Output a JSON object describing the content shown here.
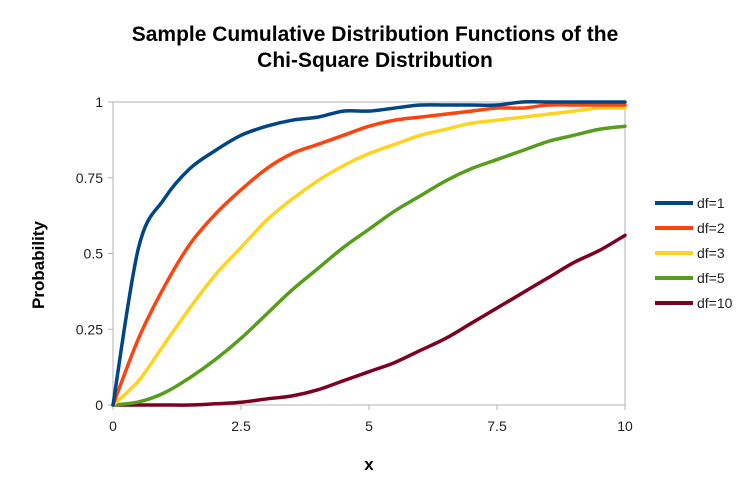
{
  "chart_data": {
    "type": "line",
    "title": "Sample Cumulative Distribution Functions of the Chi-Square Distribution",
    "title_lines": [
      "Sample Cumulative Distribution Functions of the",
      "Chi-Square Distribution"
    ],
    "xlabel": "x",
    "ylabel": "Probability",
    "xlim": [
      0,
      10
    ],
    "ylim": [
      0,
      1
    ],
    "x_ticks": [
      "0",
      "2.5",
      "5",
      "7.5",
      "10"
    ],
    "y_ticks": [
      "0",
      "0.25",
      "0.5",
      "0.75",
      "1"
    ],
    "grid": false,
    "legend_position": "right",
    "x": [
      0,
      0.5,
      1,
      1.5,
      2,
      2.5,
      3,
      3.5,
      4,
      4.5,
      5,
      5.5,
      6,
      6.5,
      7,
      7.5,
      8,
      8.5,
      9,
      9.5,
      10
    ],
    "series": [
      {
        "name": "df=1",
        "color": "#004586",
        "values": [
          0,
          0.52,
          0.68,
          0.78,
          0.84,
          0.89,
          0.92,
          0.94,
          0.95,
          0.97,
          0.97,
          0.98,
          0.99,
          0.99,
          0.99,
          0.99,
          1.0,
          1.0,
          1.0,
          1.0,
          1.0
        ]
      },
      {
        "name": "df=2",
        "color": "#ff420e",
        "values": [
          0,
          0.22,
          0.39,
          0.53,
          0.63,
          0.71,
          0.78,
          0.83,
          0.86,
          0.89,
          0.92,
          0.94,
          0.95,
          0.96,
          0.97,
          0.98,
          0.98,
          0.99,
          0.99,
          0.99,
          0.99
        ]
      },
      {
        "name": "df=3",
        "color": "#ffd320",
        "values": [
          0,
          0.08,
          0.2,
          0.32,
          0.43,
          0.52,
          0.61,
          0.68,
          0.74,
          0.79,
          0.83,
          0.86,
          0.89,
          0.91,
          0.93,
          0.94,
          0.95,
          0.96,
          0.97,
          0.98,
          0.98
        ]
      },
      {
        "name": "df=5",
        "color": "#579d1c",
        "values": [
          0,
          0.01,
          0.04,
          0.09,
          0.15,
          0.22,
          0.3,
          0.38,
          0.45,
          0.52,
          0.58,
          0.64,
          0.69,
          0.74,
          0.78,
          0.81,
          0.84,
          0.87,
          0.89,
          0.91,
          0.92
        ]
      },
      {
        "name": "df=10",
        "color": "#7e0021",
        "values": [
          0,
          0.0,
          0.0,
          0.0,
          0.004,
          0.009,
          0.02,
          0.03,
          0.05,
          0.08,
          0.11,
          0.14,
          0.18,
          0.22,
          0.27,
          0.32,
          0.37,
          0.42,
          0.47,
          0.51,
          0.56
        ]
      }
    ]
  },
  "legend": {
    "items": [
      {
        "label": "df=1",
        "color": "#004586"
      },
      {
        "label": "df=2",
        "color": "#ff420e"
      },
      {
        "label": "df=3",
        "color": "#ffd320"
      },
      {
        "label": "df=5",
        "color": "#579d1c"
      },
      {
        "label": "df=10",
        "color": "#7e0021"
      }
    ]
  }
}
